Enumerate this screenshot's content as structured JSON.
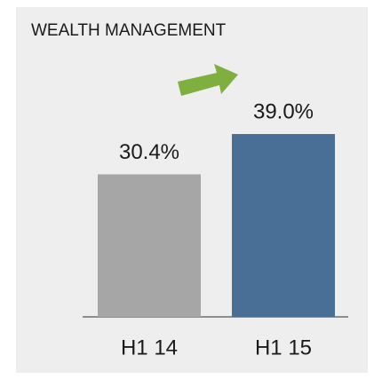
{
  "chart_data": {
    "type": "bar",
    "title": "WEALTH MANAGEMENT",
    "categories": [
      "H1 14",
      "H1 15"
    ],
    "values": [
      30.4,
      39.0
    ],
    "value_labels": [
      "30.4%",
      "39.0%"
    ],
    "colors": [
      "#a6a6a6",
      "#4a6f96"
    ]
  }
}
